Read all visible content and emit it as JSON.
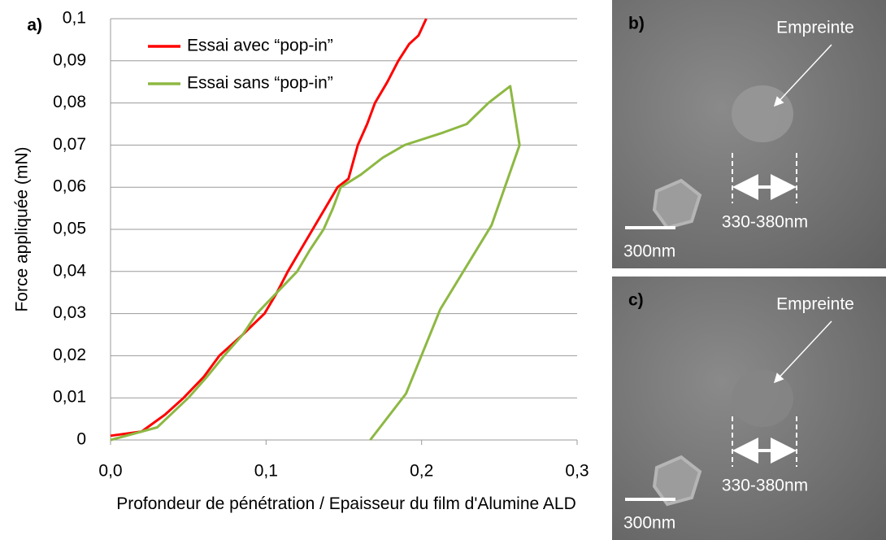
{
  "chart_data": {
    "type": "line",
    "panel_label": "a)",
    "y_label": "Force appliquée (mN)",
    "x_label": "Profondeur de pénétration / Epaisseur du film d'Alumine ALD",
    "xlim": [
      0,
      0.3
    ],
    "xticks": [
      {
        "value": 0,
        "label": "0,0"
      },
      {
        "value": 0.1,
        "label": "0,1"
      },
      {
        "value": 0.2,
        "label": "0,2"
      },
      {
        "value": 0.3,
        "label": "0,3"
      }
    ],
    "ylim": [
      0,
      0.1
    ],
    "yticks": [
      0,
      {
        "value": 0.01,
        "label": "0,01"
      },
      {
        "value": 0.02,
        "label": "0,02"
      },
      {
        "value": 0.03,
        "label": "0,03"
      },
      {
        "value": 0.04,
        "label": "0,04"
      },
      {
        "value": 0.05,
        "label": "0,05"
      },
      {
        "value": 0.06,
        "label": "0,06"
      },
      {
        "value": 0.07,
        "label": "0,07"
      },
      {
        "value": 0.08,
        "label": "0,08"
      },
      {
        "value": 0.09,
        "label": "0,09"
      },
      {
        "value": 0.1,
        "label": "0,1"
      }
    ],
    "grid": true,
    "legend": "upper-left",
    "series": [
      {
        "name": "Essai avec “pop-in”",
        "color": "#ff0000",
        "x": [
          0,
          0.02,
          0.035,
          0.047,
          0.06,
          0.07,
          0.085,
          0.099,
          0.107,
          0.114,
          0.122,
          0.13,
          0.138,
          0.146,
          0.153,
          0.159,
          0.165,
          0.17,
          0.178,
          0.185,
          0.192,
          0.198,
          0.203
        ],
        "values": [
          0.001,
          0.002,
          0.006,
          0.01,
          0.015,
          0.02,
          0.025,
          0.03,
          0.035,
          0.04,
          0.045,
          0.05,
          0.055,
          0.06,
          0.062,
          0.07,
          0.075,
          0.08,
          0.085,
          0.09,
          0.094,
          0.096,
          0.1
        ]
      },
      {
        "name": "Essai sans “pop-in”",
        "color": "#8db843",
        "x": [
          0,
          0.03,
          0.05,
          0.062,
          0.073,
          0.085,
          0.094,
          0.107,
          0.12,
          0.128,
          0.137,
          0.143,
          0.148,
          0.161,
          0.175,
          0.189,
          0.214,
          0.229,
          0.243,
          0.25,
          0.257,
          0.263,
          0.245,
          0.212,
          0.19,
          0.167
        ],
        "values": [
          0,
          0.003,
          0.01,
          0.015,
          0.02,
          0.025,
          0.03,
          0.035,
          0.04,
          0.045,
          0.05,
          0.055,
          0.06,
          0.063,
          0.067,
          0.07,
          0.073,
          0.075,
          0.08,
          0.082,
          0.084,
          0.07,
          0.051,
          0.031,
          0.011,
          0
        ]
      }
    ]
  },
  "panels": [
    {
      "label": "b)",
      "annotation": "Empreinte",
      "width_label": "330-380nm",
      "scale_label": "300nm"
    },
    {
      "label": "c)",
      "annotation": "Empreinte",
      "width_label": "330-380nm",
      "scale_label": "300nm"
    }
  ]
}
